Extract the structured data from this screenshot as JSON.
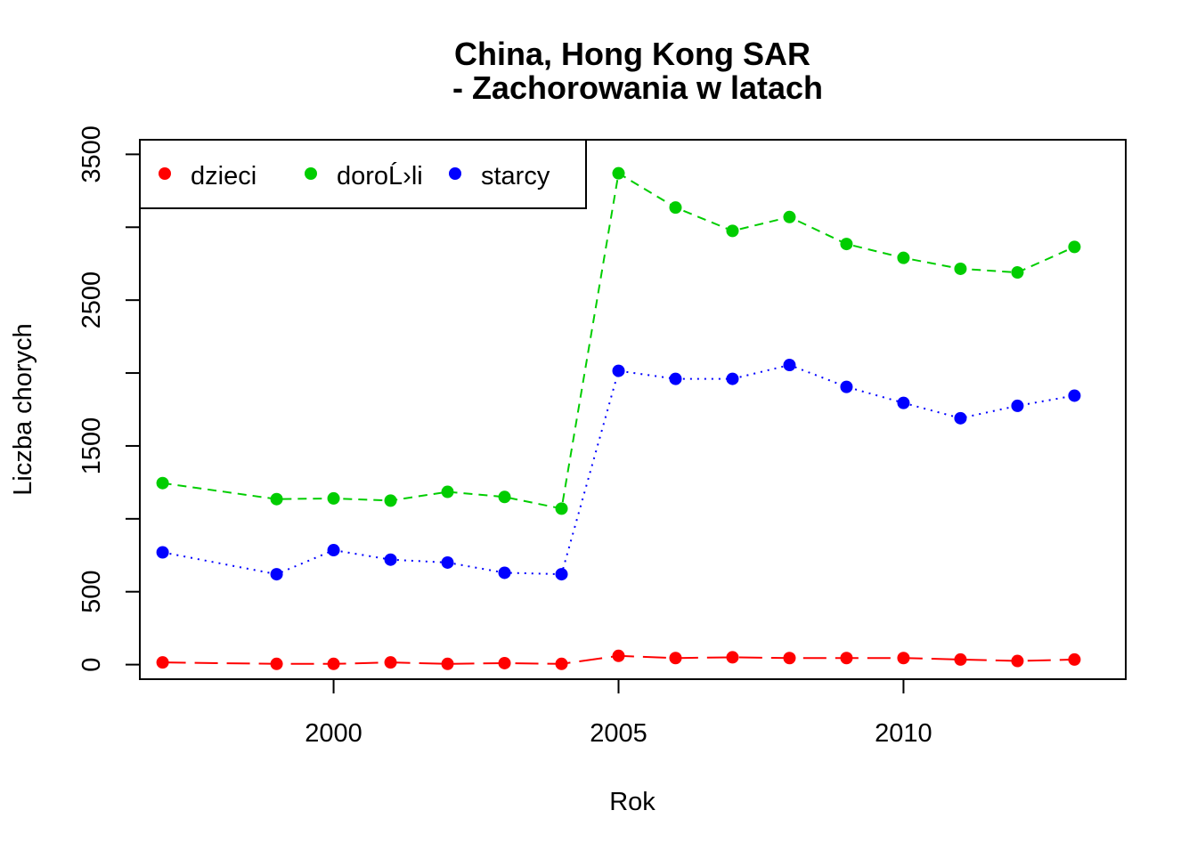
{
  "chart_data": {
    "type": "line",
    "title": "China, Hong Kong SAR",
    "subtitle": "- Zachorowania w latach",
    "xlabel": "Rok",
    "ylabel": "Liczba chorych",
    "xlim": [
      1996.6,
      2013.9
    ],
    "ylim": [
      -100,
      3600
    ],
    "x_ticks": [
      2000,
      2005,
      2010
    ],
    "x_tick_labels": [
      "2000",
      "2005",
      "2010"
    ],
    "y_ticks": [
      0,
      500,
      1000,
      1500,
      2000,
      2500,
      3000,
      3500
    ],
    "y_tick_labels": [
      "0",
      "500",
      "",
      "1500",
      "",
      "2500",
      "",
      "3500"
    ],
    "grid": false,
    "legend_position": "top-left",
    "series": [
      {
        "name": "dzieci",
        "color": "#FF0000",
        "line_style": "solid-dash",
        "x": [
          1997,
          1999,
          2000,
          2001,
          2002,
          2003,
          2004,
          2005,
          2006,
          2007,
          2008,
          2009,
          2010,
          2011,
          2012,
          2013
        ],
        "y": [
          15,
          5,
          5,
          15,
          5,
          10,
          5,
          60,
          45,
          50,
          45,
          45,
          45,
          35,
          25,
          35
        ]
      },
      {
        "name": "doroĹ›li",
        "color": "#00CD00",
        "line_style": "dashed",
        "x": [
          1997,
          1999,
          2000,
          2001,
          2002,
          2003,
          2004,
          2005,
          2006,
          2007,
          2008,
          2009,
          2010,
          2011,
          2012,
          2013
        ],
        "y": [
          1245,
          1135,
          1140,
          1125,
          1185,
          1150,
          1070,
          3370,
          3135,
          2975,
          3070,
          2885,
          2790,
          2715,
          2690,
          2865
        ]
      },
      {
        "name": "starcy",
        "color": "#0000FF",
        "line_style": "dotted",
        "x": [
          1997,
          1999,
          2000,
          2001,
          2002,
          2003,
          2004,
          2005,
          2006,
          2007,
          2008,
          2009,
          2010,
          2011,
          2012,
          2013
        ],
        "y": [
          770,
          620,
          785,
          720,
          700,
          630,
          620,
          2015,
          1960,
          1960,
          2055,
          1905,
          1795,
          1690,
          1775,
          1845
        ]
      }
    ]
  }
}
